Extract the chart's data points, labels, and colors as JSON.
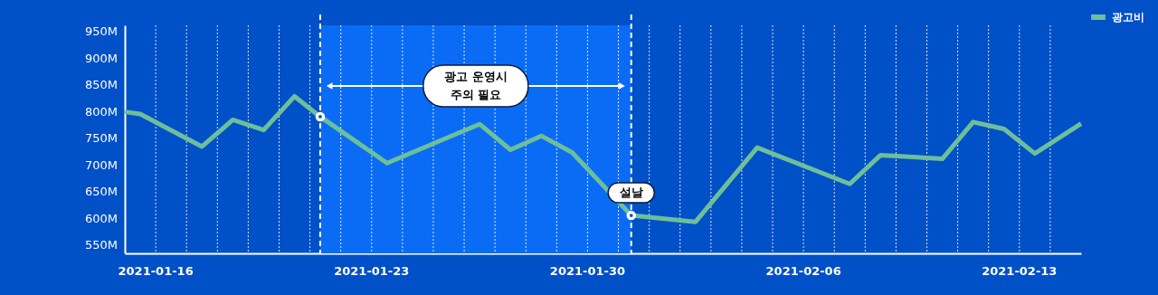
{
  "chart_data": {
    "type": "line",
    "x": [
      "2021-01-15T00:00",
      "2021-01-15T12:00",
      "2021-01-17T12:00",
      "2021-01-18T12:00",
      "2021-01-19T12:00",
      "2021-01-20T12:00",
      "2021-01-21T08:00",
      "2021-01-23T12:00",
      "2021-01-26T12:00",
      "2021-01-27T12:00",
      "2021-01-28T12:00",
      "2021-01-29T12:00",
      "2021-01-31T10:00",
      "2021-02-02T12:00",
      "2021-02-04T12:00",
      "2021-02-07T12:00",
      "2021-02-08T12:00",
      "2021-02-10T12:00",
      "2021-02-11T12:00",
      "2021-02-12T12:00",
      "2021-02-13T12:00",
      "2021-02-15T00:00"
    ],
    "series": [
      {
        "name": "광고비",
        "color": "#6dbf9a",
        "values": [
          800,
          796,
          735,
          785,
          766,
          829,
          791,
          704,
          777,
          729,
          755,
          724,
          606,
          594,
          733,
          665,
          719,
          712,
          781,
          768,
          722,
          778
        ]
      }
    ],
    "xlim": [
      "2021-01-15",
      "2021-02-15"
    ],
    "xticks": [
      "2021-01-16",
      {
        "value": "2021-01-17",
        "label": null
      },
      {
        "value": "2021-01-18",
        "label": null
      },
      {
        "value": "2021-01-19",
        "label": null
      },
      {
        "value": "2021-01-20",
        "label": null
      },
      {
        "value": "2021-01-21",
        "label": null
      },
      {
        "value": "2021-01-22",
        "label": null
      },
      "2021-01-23",
      {
        "value": "2021-01-24",
        "label": null
      },
      {
        "value": "2021-01-25",
        "label": null
      },
      {
        "value": "2021-01-26",
        "label": null
      },
      {
        "value": "2021-01-27",
        "label": null
      },
      {
        "value": "2021-01-28",
        "label": null
      },
      {
        "value": "2021-01-29",
        "label": null
      },
      "2021-01-30",
      {
        "value": "2021-01-31",
        "label": null
      },
      {
        "value": "2021-02-01",
        "label": null
      },
      {
        "value": "2021-02-02",
        "label": null
      },
      {
        "value": "2021-02-03",
        "label": null
      },
      {
        "value": "2021-02-04",
        "label": null
      },
      {
        "value": "2021-02-05",
        "label": null
      },
      "2021-02-06",
      {
        "value": "2021-02-07",
        "label": null
      },
      {
        "value": "2021-02-08",
        "label": null
      },
      {
        "value": "2021-02-09",
        "label": null
      },
      {
        "value": "2021-02-10",
        "label": null
      },
      {
        "value": "2021-02-11",
        "label": null
      },
      {
        "value": "2021-02-12",
        "label": null
      },
      "2021-02-13",
      {
        "value": "2021-02-14",
        "label": null
      }
    ],
    "ylim": [
      535,
      962
    ],
    "yticks": [
      {
        "value": 550,
        "label": "550M"
      },
      {
        "value": 600,
        "label": "600M"
      },
      {
        "value": 650,
        "label": "650M"
      },
      {
        "value": 700,
        "label": "700M"
      },
      {
        "value": 750,
        "label": "750M"
      },
      {
        "value": 800,
        "label": "800M"
      },
      {
        "value": 850,
        "label": "850M"
      },
      {
        "value": 900,
        "label": "900M"
      },
      {
        "value": 950,
        "label": "950M"
      }
    ],
    "bands": [
      {
        "axis": "x",
        "from": "2021-01-21T08:00",
        "to": "2021-01-31T10:00",
        "label": "광고 운영시\n주의 필요",
        "color": "#0a6cf5"
      }
    ],
    "ref_lines": [
      {
        "axis": "x",
        "value": "2021-01-21T08:00",
        "label": null,
        "color": "#ffffff",
        "line_style": "dashed"
      },
      {
        "axis": "x",
        "value": "2021-01-31T10:00",
        "label": "설날",
        "color": "#ffffff",
        "line_style": "dashed"
      }
    ],
    "grid": "x",
    "legend": "top right",
    "line_style": "solid"
  }
}
